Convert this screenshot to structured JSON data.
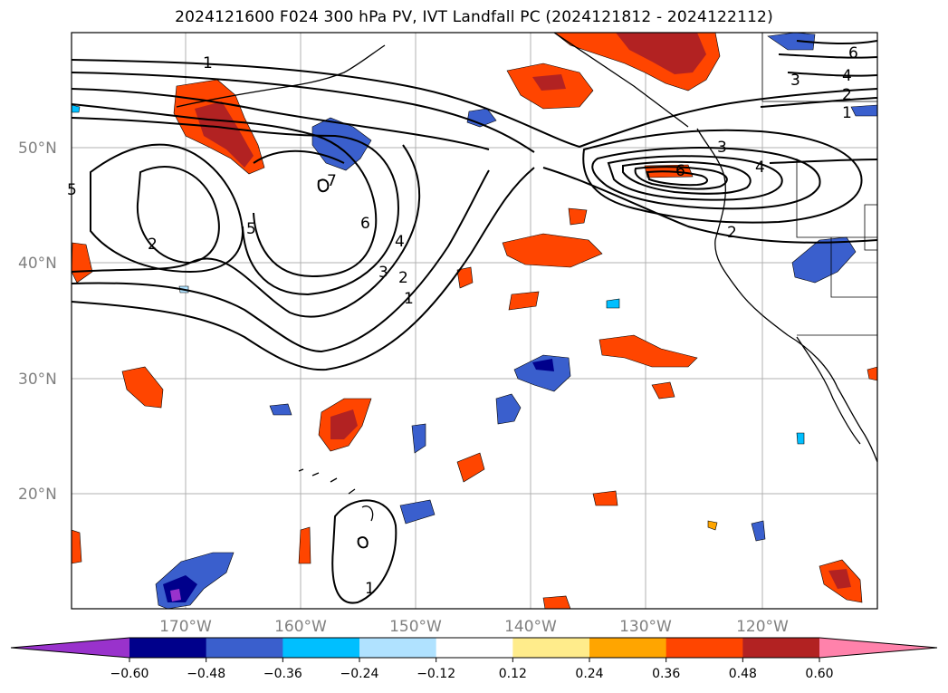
{
  "title": "2024121600 F024 300 hPa PV, IVT Landfall PC (2024121812 - 2024122112)",
  "map": {
    "lat_labels": [
      "50°N",
      "40°N",
      "30°N",
      "20°N"
    ],
    "lon_labels": [
      "170°W",
      "160°W",
      "150°W",
      "140°W",
      "130°W",
      "120°W"
    ],
    "contour_labels": [
      "1",
      "5",
      "4",
      "2",
      "1",
      "3",
      "6",
      "5",
      "2",
      "7",
      "6",
      "4",
      "3",
      "2",
      "1",
      "3",
      "6",
      "4",
      "2",
      "1"
    ],
    "ocean_color": "#ffffff",
    "coast_color": "#000000",
    "grid_color": "#b0b0b0"
  },
  "colorbar": {
    "ticks": [
      "−0.60",
      "−0.48",
      "−0.36",
      "−0.24",
      "−0.12",
      "0.12",
      "0.24",
      "0.36",
      "0.48",
      "0.60"
    ],
    "colors": [
      "#9932cc",
      "#00008b",
      "#3a5fcd",
      "#00bfff",
      "#b0e2ff",
      "#ffffff",
      "#ffec8b",
      "#ffa500",
      "#ff4500",
      "#b22222",
      "#ff82ab"
    ]
  }
}
